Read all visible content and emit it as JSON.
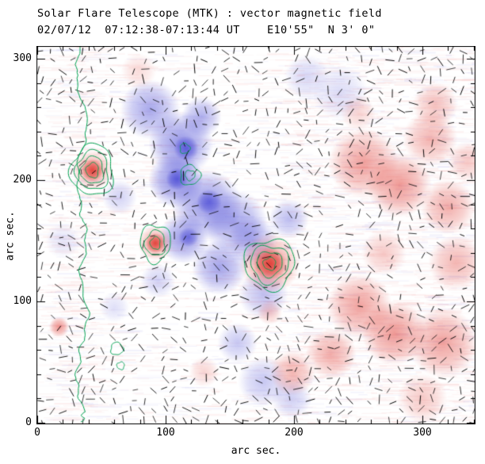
{
  "chart_data": {
    "type": "heatmap",
    "title": "Solar Flare Telescope (MTK) : vector magnetic field",
    "subtitle": "02/07/12  07:12:38-07:13:44 UT    E10'55\"  N 3' 0\"",
    "xlabel": "arc sec.",
    "ylabel": "arc sec.",
    "xlim": [
      0,
      341
    ],
    "ylim": [
      0,
      311
    ],
    "xticks": [
      0,
      100,
      200,
      300
    ],
    "yticks": [
      0,
      100,
      200,
      300
    ],
    "legend": "none",
    "grid": false,
    "colors": {
      "negative_rgb": "80,80,215",
      "positive_rgb": "225,62,54",
      "contour": "#00a050",
      "frame": "#000000",
      "vector": "#000000"
    },
    "render": {
      "seed": 42,
      "noise_streaks": 2200,
      "extra_right_streaks": 900,
      "extra_left_streaks": 300
    },
    "features": {
      "negative": [
        {
          "x": 88,
          "y": 258,
          "r": 24,
          "a": 0.5
        },
        {
          "x": 112,
          "y": 230,
          "r": 26,
          "a": 0.62
        },
        {
          "x": 108,
          "y": 200,
          "r": 22,
          "a": 0.66
        },
        {
          "x": 132,
          "y": 180,
          "r": 28,
          "a": 0.6
        },
        {
          "x": 154,
          "y": 165,
          "r": 26,
          "a": 0.52
        },
        {
          "x": 114,
          "y": 152,
          "r": 20,
          "a": 0.58
        },
        {
          "x": 142,
          "y": 128,
          "r": 22,
          "a": 0.52
        },
        {
          "x": 168,
          "y": 150,
          "r": 20,
          "a": 0.42
        },
        {
          "x": 196,
          "y": 168,
          "r": 16,
          "a": 0.38
        },
        {
          "x": 176,
          "y": 106,
          "r": 20,
          "a": 0.36
        },
        {
          "x": 156,
          "y": 66,
          "r": 16,
          "a": 0.32
        },
        {
          "x": 176,
          "y": 34,
          "r": 20,
          "a": 0.32
        },
        {
          "x": 198,
          "y": 20,
          "r": 16,
          "a": 0.28
        },
        {
          "x": 128,
          "y": 252,
          "r": 16,
          "a": 0.46
        },
        {
          "x": 64,
          "y": 186,
          "r": 14,
          "a": 0.26
        },
        {
          "x": 236,
          "y": 272,
          "r": 22,
          "a": 0.2
        },
        {
          "x": 210,
          "y": 285,
          "r": 18,
          "a": 0.22
        },
        {
          "x": 94,
          "y": 117,
          "r": 14,
          "a": 0.26
        },
        {
          "x": 60,
          "y": 95,
          "r": 12,
          "a": 0.18
        },
        {
          "x": 20,
          "y": 150,
          "r": 14,
          "a": 0.15
        },
        {
          "x": 116,
          "y": 226,
          "r": 10,
          "a": 0.85
        },
        {
          "x": 109,
          "y": 201,
          "r": 9,
          "a": 0.85
        },
        {
          "x": 134,
          "y": 182,
          "r": 10,
          "a": 0.78
        },
        {
          "x": 118,
          "y": 153,
          "r": 8,
          "a": 0.7
        }
      ],
      "positive": [
        {
          "x": 43,
          "y": 208,
          "r": 16,
          "a": 0.45
        },
        {
          "x": 43,
          "y": 208,
          "r": 9,
          "a": 0.92
        },
        {
          "x": 92,
          "y": 148,
          "r": 14,
          "a": 0.45
        },
        {
          "x": 92,
          "y": 148,
          "r": 8,
          "a": 0.92
        },
        {
          "x": 181,
          "y": 131,
          "r": 24,
          "a": 0.5
        },
        {
          "x": 181,
          "y": 131,
          "r": 13,
          "a": 0.95
        },
        {
          "x": 254,
          "y": 214,
          "r": 28,
          "a": 0.48
        },
        {
          "x": 282,
          "y": 196,
          "r": 26,
          "a": 0.52
        },
        {
          "x": 306,
          "y": 234,
          "r": 22,
          "a": 0.38
        },
        {
          "x": 320,
          "y": 178,
          "r": 22,
          "a": 0.42
        },
        {
          "x": 251,
          "y": 96,
          "r": 26,
          "a": 0.48
        },
        {
          "x": 278,
          "y": 74,
          "r": 26,
          "a": 0.52
        },
        {
          "x": 316,
          "y": 66,
          "r": 28,
          "a": 0.48
        },
        {
          "x": 326,
          "y": 132,
          "r": 22,
          "a": 0.38
        },
        {
          "x": 229,
          "y": 57,
          "r": 20,
          "a": 0.42
        },
        {
          "x": 199,
          "y": 41,
          "r": 18,
          "a": 0.38
        },
        {
          "x": 17,
          "y": 79,
          "r": 8,
          "a": 0.55
        },
        {
          "x": 310,
          "y": 262,
          "r": 18,
          "a": 0.32
        },
        {
          "x": 335,
          "y": 215,
          "r": 16,
          "a": 0.28
        },
        {
          "x": 79,
          "y": 290,
          "r": 14,
          "a": 0.18
        },
        {
          "x": 130,
          "y": 42,
          "r": 12,
          "a": 0.22
        },
        {
          "x": 270,
          "y": 140,
          "r": 18,
          "a": 0.28
        },
        {
          "x": 250,
          "y": 255,
          "r": 14,
          "a": 0.22
        },
        {
          "x": 300,
          "y": 20,
          "r": 20,
          "a": 0.28
        },
        {
          "x": 181,
          "y": 91,
          "r": 10,
          "a": 0.28
        }
      ],
      "contour_rings": [
        {
          "x": 43,
          "y": 208,
          "sy": 1.2,
          "radii": [
            5,
            9,
            13,
            17
          ]
        },
        {
          "x": 92,
          "y": 148,
          "sy": 1.25,
          "radii": [
            4,
            8,
            12
          ]
        },
        {
          "x": 181,
          "y": 131,
          "sy": 1.0,
          "radii": [
            5,
            10,
            15,
            20
          ]
        },
        {
          "x": 119,
          "y": 204,
          "sy": 1.0,
          "radii": [
            4,
            8
          ]
        },
        {
          "x": 115,
          "y": 226,
          "sy": 1.0,
          "radii": [
            4
          ]
        },
        {
          "x": 62,
          "y": 61,
          "sy": 1.0,
          "radii": [
            5
          ]
        },
        {
          "x": 65,
          "y": 47,
          "sy": 1.0,
          "radii": [
            3
          ]
        }
      ],
      "boundary_line": [
        [
          33,
          311
        ],
        [
          30,
          284
        ],
        [
          40,
          244
        ],
        [
          31,
          212
        ],
        [
          33,
          179
        ],
        [
          39,
          153
        ],
        [
          33,
          120
        ],
        [
          40,
          88
        ],
        [
          34,
          61
        ],
        [
          30,
          35
        ],
        [
          36,
          9
        ],
        [
          35,
          0
        ]
      ],
      "swirl_centers": [
        {
          "x": 181,
          "y": 131,
          "r": 30
        },
        {
          "x": 43,
          "y": 208,
          "r": 16
        },
        {
          "x": 92,
          "y": 148,
          "r": 13
        }
      ],
      "vectors": {
        "grid": 13,
        "len": 9,
        "skip": 0.32
      }
    }
  }
}
